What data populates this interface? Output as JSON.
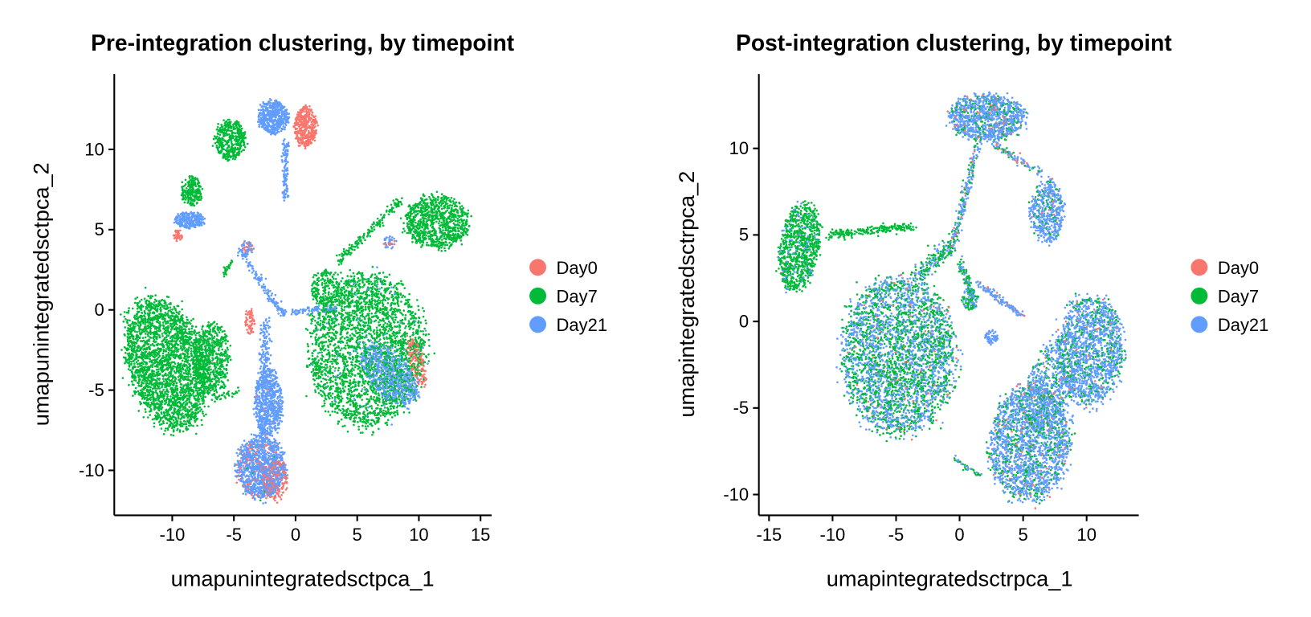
{
  "chart_data": [
    {
      "type": "scatter",
      "title": "Pre-integration clustering, by timepoint",
      "xlabel": "umapunintegratedsctpca_1",
      "ylabel": "umapunintegratedsctpca_2",
      "xlim": [
        -14.7,
        15.9
      ],
      "ylim": [
        -12.8,
        14.7
      ],
      "xticks": [
        -10,
        -5,
        0,
        5,
        10,
        15
      ],
      "yticks": [
        -10,
        -5,
        0,
        5,
        10
      ],
      "grid": false,
      "legend": {
        "placement": "right",
        "entries": [
          "Day0",
          "Day7",
          "Day21"
        ]
      },
      "colors": {
        "Day0": "#F8766D",
        "Day7": "#00BA38",
        "Day21": "#619CFF"
      },
      "clusters": [
        {
          "x": -10.5,
          "y": -3.3,
          "rx": 2.9,
          "ry": 4.2,
          "rot": 25,
          "n": 2600,
          "mix": [
            0,
            1,
            0
          ]
        },
        {
          "x": -6.8,
          "y": -3.1,
          "rx": 1.4,
          "ry": 2.2,
          "rot": 0,
          "n": 600,
          "mix": [
            0,
            1,
            0
          ]
        },
        {
          "x": 5.8,
          "y": -2.5,
          "rx": 4.5,
          "ry": 4.6,
          "rot": 0,
          "n": 2800,
          "mix": [
            0,
            0.97,
            0.03
          ]
        },
        {
          "x": 2.4,
          "y": 1.3,
          "rx": 1.1,
          "ry": 1.1,
          "rot": 0,
          "n": 200,
          "mix": [
            0,
            1,
            0
          ]
        },
        {
          "x": 9.8,
          "y": -3.2,
          "rx": 0.6,
          "ry": 1.6,
          "rot": 20,
          "n": 150,
          "mix": [
            1,
            0,
            0
          ]
        },
        {
          "x": 7.6,
          "y": -4.0,
          "rx": 2.6,
          "ry": 1.4,
          "rot": -35,
          "n": 700,
          "mix": [
            0,
            0.05,
            0.95
          ]
        },
        {
          "x": 11.5,
          "y": 5.5,
          "rx": 2.5,
          "ry": 1.6,
          "rot": 0,
          "n": 900,
          "mix": [
            0,
            1,
            0
          ]
        },
        {
          "x": 7.6,
          "y": 4.2,
          "rx": 0.5,
          "ry": 0.4,
          "rot": 0,
          "n": 40,
          "mix": [
            0.3,
            0,
            0.7
          ]
        },
        {
          "x": -2.8,
          "y": -9.8,
          "rx": 1.9,
          "ry": 1.9,
          "rot": 0,
          "n": 1200,
          "mix": [
            0.1,
            0.01,
            0.89
          ]
        },
        {
          "x": -1.7,
          "y": -10.6,
          "rx": 1.0,
          "ry": 1.2,
          "rot": 0,
          "n": 200,
          "mix": [
            1,
            0,
            0
          ]
        },
        {
          "x": -2.2,
          "y": -5.8,
          "rx": 1.1,
          "ry": 2.0,
          "rot": 0,
          "n": 700,
          "mix": [
            0.03,
            0,
            0.97
          ]
        },
        {
          "x": -1.8,
          "y": 12.0,
          "rx": 1.2,
          "ry": 1.0,
          "rot": 0,
          "n": 500,
          "mix": [
            0,
            0,
            1
          ]
        },
        {
          "x": 0.8,
          "y": 11.4,
          "rx": 0.9,
          "ry": 1.2,
          "rot": 0,
          "n": 400,
          "mix": [
            1,
            0,
            0
          ]
        },
        {
          "x": -5.3,
          "y": 10.6,
          "rx": 1.2,
          "ry": 1.2,
          "rot": 0,
          "n": 400,
          "mix": [
            0,
            1,
            0
          ]
        },
        {
          "x": -8.4,
          "y": 7.4,
          "rx": 0.8,
          "ry": 0.9,
          "rot": 0,
          "n": 200,
          "mix": [
            0,
            1,
            0
          ]
        },
        {
          "x": -8.6,
          "y": 5.6,
          "rx": 1.1,
          "ry": 0.5,
          "rot": 0,
          "n": 250,
          "mix": [
            0,
            0,
            1
          ]
        },
        {
          "x": -9.6,
          "y": 4.6,
          "rx": 0.4,
          "ry": 0.35,
          "rot": 0,
          "n": 40,
          "mix": [
            1,
            0,
            0
          ]
        },
        {
          "x": -3.7,
          "y": -0.7,
          "rx": 0.4,
          "ry": 0.8,
          "rot": 0,
          "n": 60,
          "mix": [
            1,
            0,
            0
          ]
        },
        {
          "x": -3.9,
          "y": 3.9,
          "rx": 0.5,
          "ry": 0.4,
          "rot": 0,
          "n": 50,
          "mix": [
            0.4,
            0,
            0.6
          ]
        }
      ],
      "streams": [
        {
          "x1": -4.5,
          "y1": 3.8,
          "x2": -2.3,
          "y2": 1.0,
          "w": 0.25,
          "n": 80,
          "mix": [
            0,
            0,
            1
          ]
        },
        {
          "x1": -2.3,
          "y1": 1.0,
          "x2": -1.0,
          "y2": -0.2,
          "w": 0.3,
          "n": 60,
          "mix": [
            0,
            0,
            1
          ]
        },
        {
          "x1": -1.0,
          "y1": -0.2,
          "x2": 3.2,
          "y2": 0.1,
          "w": 0.2,
          "n": 90,
          "mix": [
            0,
            0,
            1
          ]
        },
        {
          "x1": -2.4,
          "y1": -0.5,
          "x2": -2.5,
          "y2": -4.0,
          "w": 0.4,
          "n": 120,
          "mix": [
            0,
            0,
            1
          ]
        },
        {
          "x1": -0.8,
          "y1": 10.5,
          "x2": -0.8,
          "y2": 6.8,
          "w": 0.25,
          "n": 120,
          "mix": [
            0,
            0,
            1
          ]
        },
        {
          "x1": 3.5,
          "y1": 3.0,
          "x2": 8.5,
          "y2": 6.8,
          "w": 0.3,
          "n": 160,
          "mix": [
            0,
            1,
            0
          ]
        },
        {
          "x1": -5.2,
          "y1": 3.0,
          "x2": -5.8,
          "y2": 2.2,
          "w": 0.2,
          "n": 30,
          "mix": [
            0,
            1,
            0
          ]
        },
        {
          "x1": -6.5,
          "y1": -5.6,
          "x2": -4.5,
          "y2": -5.0,
          "w": 0.2,
          "n": 30,
          "mix": [
            0,
            1,
            0
          ]
        }
      ]
    },
    {
      "type": "scatter",
      "title": "Post-integration clustering, by timepoint",
      "xlabel": "umapintegratedsctrpca_1",
      "ylabel": "umapintegratedsctrpca_2",
      "xlim": [
        -15.8,
        14.1
      ],
      "ylim": [
        -11.2,
        14.3
      ],
      "xticks": [
        -15,
        -10,
        -5,
        0,
        5,
        10
      ],
      "yticks": [
        -10,
        -5,
        0,
        5,
        10
      ],
      "grid": false,
      "legend": {
        "placement": "right",
        "entries": [
          "Day0",
          "Day7",
          "Day21"
        ]
      },
      "colors": {
        "Day0": "#F8766D",
        "Day7": "#00BA38",
        "Day21": "#619CFF"
      },
      "clusters": [
        {
          "x": -4.8,
          "y": -2.0,
          "rx": 4.3,
          "ry": 4.4,
          "rot": 0,
          "n": 3200,
          "mix": [
            0.02,
            0.5,
            0.48
          ]
        },
        {
          "x": 10.3,
          "y": -1.7,
          "rx": 2.5,
          "ry": 3.0,
          "rot": 0,
          "n": 1500,
          "mix": [
            0.02,
            0.2,
            0.78
          ]
        },
        {
          "x": 5.5,
          "y": -7.0,
          "rx": 3.0,
          "ry": 3.3,
          "rot": -30,
          "n": 2000,
          "mix": [
            0.04,
            0.2,
            0.76
          ]
        },
        {
          "x": 7.2,
          "y": -3.5,
          "rx": 1.6,
          "ry": 3.0,
          "rot": -30,
          "n": 600,
          "mix": [
            0.02,
            0.3,
            0.68
          ]
        },
        {
          "x": 2.2,
          "y": 11.8,
          "rx": 2.9,
          "ry": 1.3,
          "rot": 0,
          "n": 1100,
          "mix": [
            0.04,
            0.2,
            0.76
          ]
        },
        {
          "x": 6.9,
          "y": 6.4,
          "rx": 1.3,
          "ry": 1.7,
          "rot": 0,
          "n": 500,
          "mix": [
            0.03,
            0.15,
            0.82
          ]
        },
        {
          "x": -12.6,
          "y": 4.3,
          "rx": 1.5,
          "ry": 2.5,
          "rot": -15,
          "n": 900,
          "mix": [
            0,
            0.88,
            0.12
          ]
        },
        {
          "x": 2.5,
          "y": -0.9,
          "rx": 0.5,
          "ry": 0.4,
          "rot": 0,
          "n": 60,
          "mix": [
            0.05,
            0,
            0.95
          ]
        },
        {
          "x": 0.8,
          "y": 1.3,
          "rx": 0.6,
          "ry": 0.6,
          "rot": 0,
          "n": 100,
          "mix": [
            0,
            0.5,
            0.5
          ]
        }
      ],
      "streams": [
        {
          "x1": -10.5,
          "y1": 5.0,
          "x2": -3.5,
          "y2": 5.5,
          "w": 0.25,
          "n": 200,
          "mix": [
            0,
            1,
            0
          ]
        },
        {
          "x1": -3.5,
          "y1": 2.5,
          "x2": -0.5,
          "y2": 4.5,
          "w": 0.5,
          "n": 200,
          "mix": [
            0,
            0.6,
            0.4
          ]
        },
        {
          "x1": -0.5,
          "y1": 4.5,
          "x2": 1.5,
          "y2": 10.5,
          "w": 0.3,
          "n": 200,
          "mix": [
            0.1,
            0.3,
            0.6
          ]
        },
        {
          "x1": 2.7,
          "y1": 10.2,
          "x2": 6.5,
          "y2": 8.5,
          "w": 0.2,
          "n": 100,
          "mix": [
            0.2,
            0.2,
            0.6
          ]
        },
        {
          "x1": 1.5,
          "y1": 2.2,
          "x2": 5.0,
          "y2": 0.3,
          "w": 0.2,
          "n": 120,
          "mix": [
            0.1,
            0,
            0.9
          ]
        },
        {
          "x1": 0.0,
          "y1": 3.5,
          "x2": 1.0,
          "y2": 1.5,
          "w": 0.3,
          "n": 80,
          "mix": [
            0,
            0.7,
            0.3
          ]
        },
        {
          "x1": -0.5,
          "y1": -7.9,
          "x2": 1.8,
          "y2": -9.0,
          "w": 0.2,
          "n": 40,
          "mix": [
            0,
            0.7,
            0.3
          ]
        }
      ]
    }
  ]
}
